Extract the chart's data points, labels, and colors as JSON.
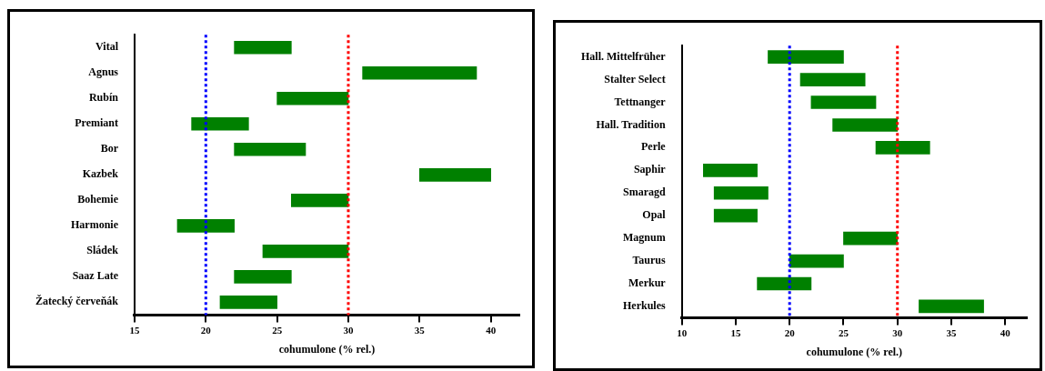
{
  "chart_data": [
    {
      "type": "bar",
      "orientation": "horizontal",
      "categories": [
        "Vital",
        "Agnus",
        "Rubín",
        "Premiant",
        "Bor",
        "Kazbek",
        "Bohemie",
        "Harmonie",
        "Sládek",
        "Saaz Late",
        "Žatecký červeňák"
      ],
      "base": [
        22,
        31,
        25,
        19,
        22,
        35,
        26,
        18,
        24,
        22,
        21
      ],
      "values": [
        4,
        8,
        5,
        4,
        5,
        5,
        4,
        4,
        6,
        4,
        4
      ],
      "color": "#008000",
      "xlabel": "cohumulone (% rel.)",
      "xlim": [
        15,
        42
      ],
      "xticks": [
        15,
        20,
        25,
        30,
        35,
        40
      ],
      "grid": false,
      "legend": false,
      "ref_lines": [
        {
          "axis": "x",
          "value": 20,
          "color": "#0000ff",
          "line_style": "dotted"
        },
        {
          "axis": "x",
          "value": 30,
          "color": "#ff0000",
          "line_style": "dotted"
        }
      ]
    },
    {
      "type": "bar",
      "orientation": "horizontal",
      "categories": [
        "Hall. Mittelfrüher",
        "Stalter Select",
        "Tettnanger",
        "Hall. Tradition",
        "Perle",
        "Saphir",
        "Smaragd",
        "Opal",
        "Magnum",
        "Taurus",
        "Merkur",
        "Herkules"
      ],
      "base": [
        18,
        21,
        22,
        24,
        28,
        12,
        13,
        13,
        25,
        20,
        17,
        32
      ],
      "values": [
        7,
        6,
        6,
        6,
        5,
        5,
        5,
        4,
        5,
        5,
        5,
        6
      ],
      "color": "#008000",
      "xlabel": "cohumulone (% rel.)",
      "xlim": [
        10,
        42
      ],
      "xticks": [
        10,
        15,
        20,
        25,
        30,
        35,
        40
      ],
      "grid": false,
      "legend": false,
      "ref_lines": [
        {
          "axis": "x",
          "value": 20,
          "color": "#0000ff",
          "line_style": "dotted"
        },
        {
          "axis": "x",
          "value": 30,
          "color": "#ff0000",
          "line_style": "dotted"
        }
      ]
    }
  ]
}
